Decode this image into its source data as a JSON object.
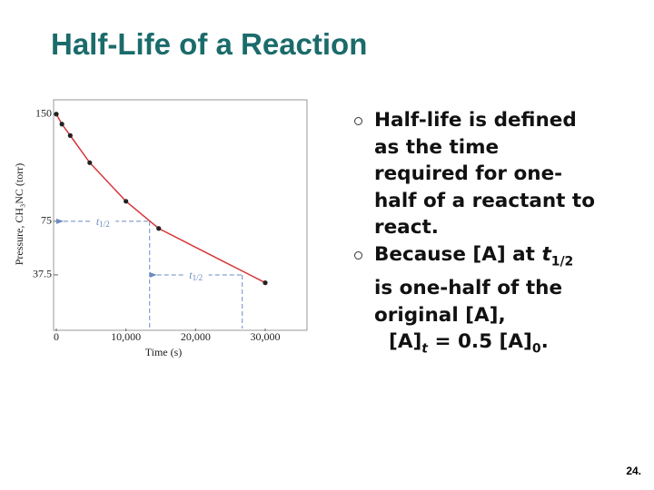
{
  "title": "Half-Life of a Reaction",
  "bullets": [
    {
      "runs": [
        {
          "text": "Half-life is defined as the time required for one-half of a reactant to react."
        }
      ]
    },
    {
      "runs": [
        {
          "text": "Because [A] at "
        },
        {
          "text": "t",
          "style": "italic"
        },
        {
          "text": "1/2",
          "style": "sub"
        },
        {
          "text": " is one-half of the original [A],"
        }
      ]
    }
  ],
  "equation": [
    {
      "text": "[A]"
    },
    {
      "text": "t",
      "style": "italic-sub"
    },
    {
      "text": " = 0.5 [A]"
    },
    {
      "text": "0",
      "style": "sub"
    },
    {
      "text": "."
    }
  ],
  "page_number": "24.",
  "chart_data": {
    "type": "line",
    "x_label": "Time (s)",
    "y_label": "Pressure, CH₃NC (torr)",
    "x": [
      0,
      800,
      2000,
      4800,
      10000,
      14700,
      30000
    ],
    "series": [
      {
        "color": "#d7373c",
        "values": [
          150,
          143,
          135,
          116,
          89,
          70,
          32
        ]
      }
    ],
    "xlim": [
      0,
      36000
    ],
    "ylim": [
      0,
      160
    ],
    "xticks": [
      0,
      {
        "value": 10000,
        "label": "10,000"
      },
      {
        "value": 20000,
        "label": "20,000"
      },
      {
        "value": 30000,
        "label": "30,000"
      }
    ],
    "yticks": [
      37.5,
      75,
      150
    ],
    "annotations": [
      {
        "text": "t",
        "subscript": "1/2",
        "x": 13400,
        "y": 75
      },
      {
        "text": "t",
        "subscript": "1/2",
        "x": 26700,
        "y": 37.5
      }
    ]
  }
}
